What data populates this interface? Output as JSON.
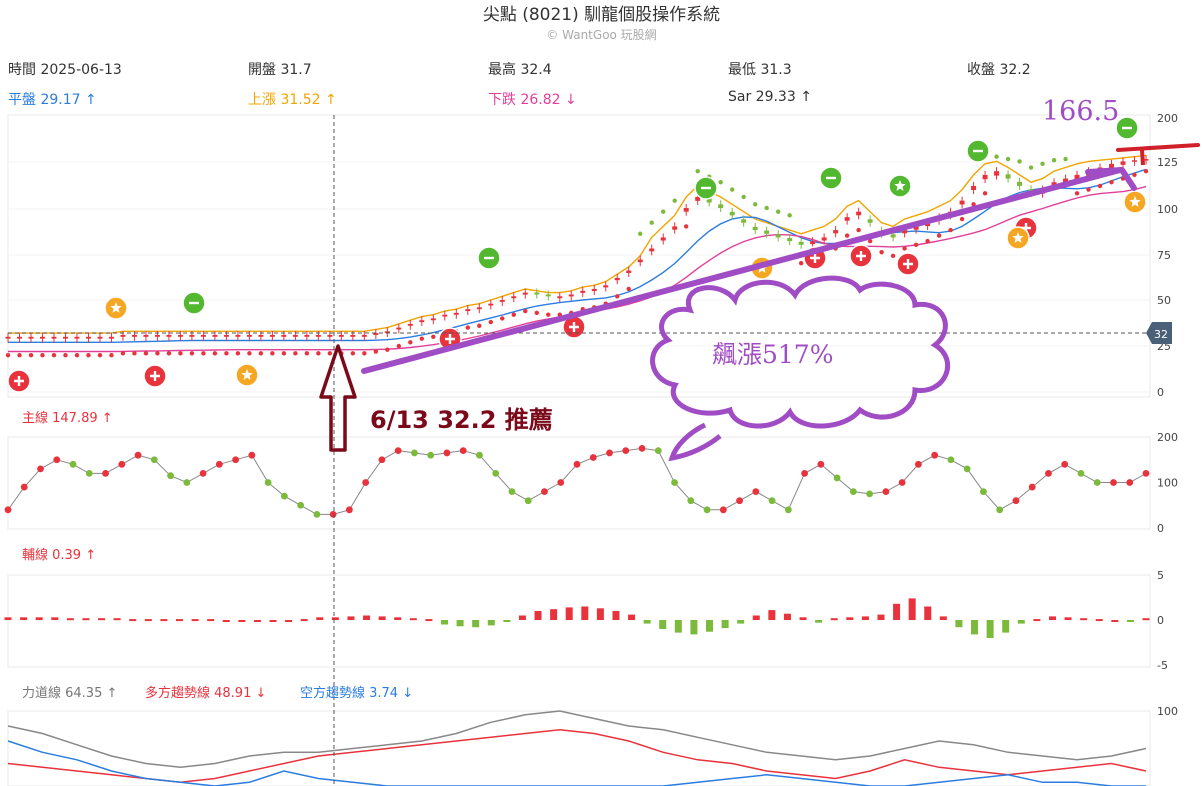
{
  "header": {
    "title": "尖點 (8021) 馴龍個股操作系統",
    "subtitle": "© WantGoo 玩股網"
  },
  "stats": {
    "time": "時間 2025-06-13",
    "open": "開盤 31.7",
    "high": "最高 32.4",
    "low": "最低 31.3",
    "close": "收盤 32.2",
    "flat": "平盤 29.17 ↑",
    "up": "上漲 31.52 ↑",
    "down": "下跌 26.82 ↓",
    "sar": "Sar 29.33 ↑"
  },
  "panels": {
    "main_label": "主線 147.89 ↑",
    "aux_label": "輔線 0.39 ↑",
    "power_label": "力道線 64.35 ↑",
    "long_label": "多方趨勢線 48.91 ↓",
    "short_label": "空方趨勢線 3.74 ↓"
  },
  "annotations": {
    "recommend": "6/13  32.2 推薦",
    "surge": "飆漲517%",
    "peak": "166.5",
    "current_price_tag": "32"
  },
  "colors": {
    "up": "#e8323c",
    "down": "#7cba3c",
    "flat_line": "#2b7de0",
    "up_line": "#f0a500",
    "down_line": "#e0409a",
    "annotation_purple": "#a04cc4",
    "annotation_dark": "#7a0a1a"
  },
  "chart_data": [
    {
      "type": "candlestick",
      "name": "price",
      "y_ticks": [
        0,
        25,
        50,
        75,
        100,
        125,
        200
      ],
      "ylim": [
        0,
        200
      ],
      "current_price": 32,
      "close_series": [
        30,
        30,
        30,
        30,
        30,
        30,
        30,
        30,
        30,
        30,
        31,
        31,
        31,
        31,
        31,
        31,
        31,
        31,
        31,
        31,
        31,
        31,
        31,
        31,
        31,
        31,
        31,
        31,
        31,
        31,
        31,
        31,
        32,
        33,
        35,
        37,
        39,
        40,
        42,
        43,
        45,
        46,
        48,
        50,
        52,
        54,
        53,
        52,
        52,
        53,
        55,
        56,
        58,
        62,
        66,
        72,
        78,
        84,
        90,
        100,
        106,
        103,
        100,
        96,
        92,
        88,
        86,
        84,
        82,
        80,
        82,
        84,
        88,
        95,
        98,
        92,
        86,
        84,
        88,
        90,
        92,
        95,
        98,
        104,
        112,
        118,
        120,
        116,
        112,
        108,
        110,
        114,
        116,
        118,
        120,
        122,
        124,
        126,
        128,
        130
      ]
    },
    {
      "type": "line",
      "name": "主線",
      "y_ticks": [
        0,
        100,
        200
      ],
      "ylim": [
        0,
        200
      ],
      "values": [
        40,
        90,
        130,
        150,
        140,
        120,
        120,
        140,
        160,
        150,
        115,
        100,
        120,
        140,
        150,
        160,
        100,
        70,
        50,
        30,
        30,
        40,
        100,
        150,
        170,
        165,
        160,
        165,
        170,
        160,
        120,
        80,
        60,
        80,
        100,
        140,
        155,
        165,
        170,
        175,
        170,
        100,
        60,
        40,
        40,
        60,
        80,
        60,
        40,
        120,
        140,
        110,
        80,
        75,
        80,
        100,
        140,
        160,
        150,
        130,
        80,
        40,
        60,
        90,
        120,
        140,
        120,
        100,
        100,
        100,
        120
      ]
    },
    {
      "type": "bar",
      "name": "輔線",
      "y_ticks": [
        -5,
        0,
        5
      ],
      "ylim": [
        -5,
        5
      ],
      "values": [
        0.3,
        0.3,
        0.3,
        0.3,
        0.2,
        0.2,
        0.2,
        0.2,
        0.1,
        0.1,
        0.1,
        0.1,
        0.1,
        0.1,
        0,
        0,
        0,
        0,
        0,
        0.1,
        0.3,
        0.3,
        0.4,
        0.5,
        0.4,
        0.3,
        0.2,
        0.1,
        -0.5,
        -0.7,
        -0.8,
        -0.6,
        -0.2,
        0.5,
        1.0,
        1.2,
        1.4,
        1.5,
        1.3,
        1.0,
        0.6,
        -0.4,
        -1.0,
        -1.4,
        -1.6,
        -1.3,
        -0.9,
        -0.4,
        0.5,
        1.1,
        0.7,
        0.3,
        -0.3,
        0.2,
        0.3,
        0.4,
        0.6,
        1.8,
        2.4,
        1.5,
        0.4,
        -0.8,
        -1.6,
        -2.0,
        -1.4,
        -0.4,
        0.1,
        0.4,
        0.3,
        0.2,
        0.1,
        0.0,
        -0.2,
        0.2
      ]
    },
    {
      "type": "line",
      "name": "力道線",
      "y_ticks": [
        100
      ],
      "ylim": [
        0,
        160
      ],
      "series": [
        {
          "name": "力道線",
          "values": [
            80,
            70,
            55,
            40,
            30,
            25,
            30,
            40,
            45,
            45,
            50,
            55,
            60,
            70,
            85,
            95,
            100,
            90,
            80,
            75,
            65,
            55,
            45,
            40,
            35,
            40,
            50,
            60,
            55,
            45,
            40,
            35,
            40,
            50
          ]
        },
        {
          "name": "多方趨勢線",
          "values": [
            30,
            25,
            20,
            15,
            10,
            5,
            10,
            20,
            30,
            40,
            45,
            50,
            55,
            60,
            65,
            70,
            75,
            70,
            60,
            45,
            35,
            30,
            20,
            15,
            10,
            20,
            35,
            25,
            20,
            15,
            20,
            25,
            30,
            20
          ]
        },
        {
          "name": "空方趨勢線",
          "values": [
            60,
            45,
            35,
            20,
            10,
            5,
            0,
            5,
            20,
            10,
            5,
            0,
            0,
            0,
            0,
            0,
            0,
            0,
            0,
            0,
            5,
            10,
            15,
            10,
            5,
            0,
            0,
            5,
            10,
            15,
            5,
            5,
            0,
            0
          ]
        }
      ]
    }
  ]
}
